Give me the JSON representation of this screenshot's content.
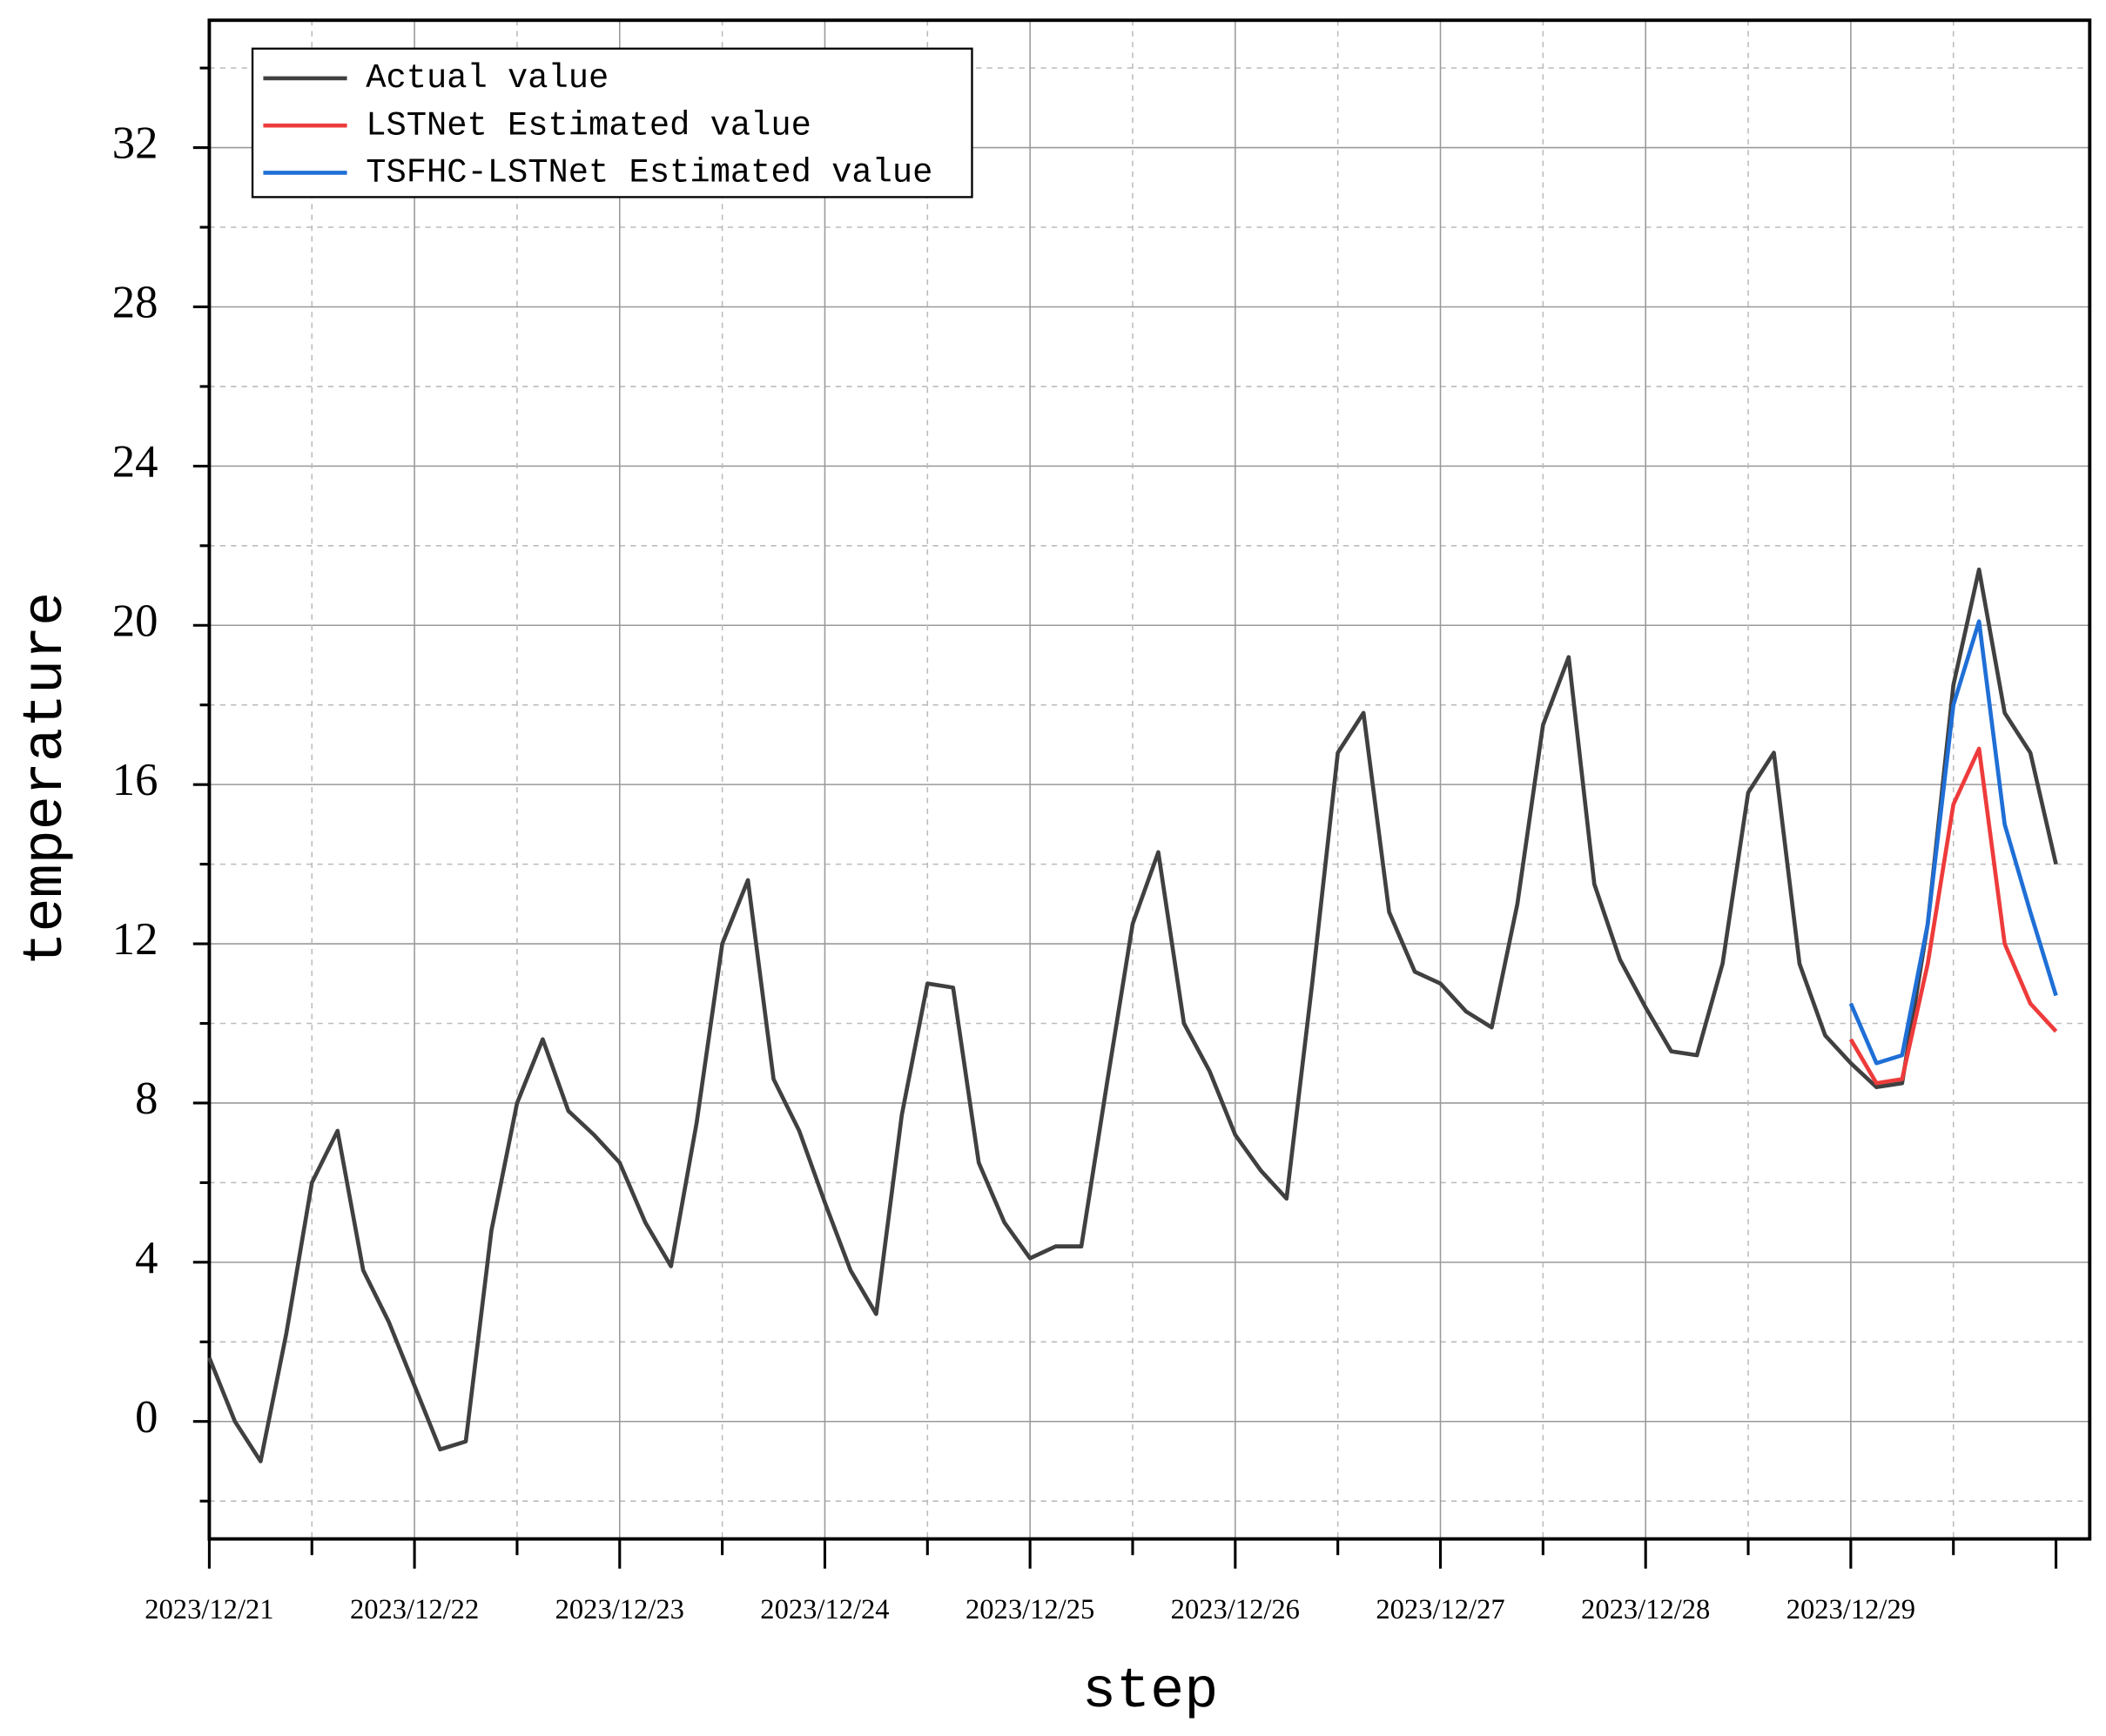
{
  "chart_data": {
    "type": "line",
    "xlabel": "step",
    "ylabel": "temperature",
    "x": [
      0,
      0.125,
      0.25,
      0.375,
      0.5,
      0.625,
      0.75,
      0.875,
      1,
      1.125,
      1.25,
      1.375,
      1.5,
      1.625,
      1.75,
      1.875,
      2,
      2.125,
      2.25,
      2.375,
      2.5,
      2.625,
      2.75,
      2.875,
      3,
      3.125,
      3.25,
      3.375,
      3.5,
      3.625,
      3.75,
      3.875,
      4,
      4.125,
      4.25,
      4.375,
      4.5,
      4.625,
      4.75,
      4.875,
      5,
      5.125,
      5.25,
      5.375,
      5.5,
      5.625,
      5.75,
      5.875,
      6,
      6.125,
      6.25,
      6.375,
      6.5,
      6.625,
      6.75,
      6.875,
      7,
      7.125,
      7.25,
      7.375,
      7.5,
      7.625,
      7.75,
      7.875,
      8,
      8.125,
      8.25,
      8.375,
      8.5,
      8.625,
      8.75,
      8.875,
      9
    ],
    "series": [
      {
        "name": "Actual value",
        "color": "#404040",
        "values": [
          1.6,
          0.0,
          -1.0,
          2.2,
          6.0,
          7.3,
          3.8,
          2.5,
          0.9,
          -0.7,
          -0.5,
          4.8,
          8.0,
          9.6,
          7.8,
          7.2,
          6.5,
          5.0,
          3.9,
          7.5,
          12.0,
          13.6,
          8.6,
          7.3,
          5.5,
          3.8,
          2.7,
          7.7,
          11.0,
          10.9,
          6.5,
          5.0,
          4.1,
          4.4,
          4.4,
          8.5,
          12.5,
          14.3,
          10.0,
          8.8,
          7.2,
          6.3,
          5.6,
          11.0,
          16.8,
          17.8,
          12.8,
          11.3,
          11.0,
          10.3,
          9.9,
          13.0,
          17.5,
          19.2,
          13.5,
          11.6,
          10.4,
          9.3,
          9.2,
          11.5,
          15.8,
          16.8,
          11.5,
          9.7,
          9.0,
          8.4,
          8.5,
          12.5,
          18.5,
          21.4,
          17.8,
          16.8,
          14.0
        ]
      },
      {
        "name": "LSTNet Estimated value",
        "color": "#ee3b3b",
        "values": [
          null,
          null,
          null,
          null,
          null,
          null,
          null,
          null,
          null,
          null,
          null,
          null,
          null,
          null,
          null,
          null,
          null,
          null,
          null,
          null,
          null,
          null,
          null,
          null,
          null,
          null,
          null,
          null,
          null,
          null,
          null,
          null,
          null,
          null,
          null,
          null,
          null,
          null,
          null,
          null,
          null,
          null,
          null,
          null,
          null,
          null,
          null,
          null,
          null,
          null,
          null,
          null,
          null,
          null,
          null,
          null,
          null,
          null,
          null,
          null,
          null,
          null,
          null,
          null,
          9.6,
          8.5,
          8.6,
          11.5,
          15.5,
          16.9,
          12.0,
          10.5,
          9.8
        ]
      },
      {
        "name": "TSFHC-LSTNet Estimated value",
        "color": "#1f6fd6",
        "values": [
          null,
          null,
          null,
          null,
          null,
          null,
          null,
          null,
          null,
          null,
          null,
          null,
          null,
          null,
          null,
          null,
          null,
          null,
          null,
          null,
          null,
          null,
          null,
          null,
          null,
          null,
          null,
          null,
          null,
          null,
          null,
          null,
          null,
          null,
          null,
          null,
          null,
          null,
          null,
          null,
          null,
          null,
          null,
          null,
          null,
          null,
          null,
          null,
          null,
          null,
          null,
          null,
          null,
          null,
          null,
          null,
          null,
          null,
          null,
          null,
          null,
          null,
          null,
          null,
          10.5,
          9.0,
          9.2,
          12.5,
          18.0,
          20.1,
          15.0,
          12.8,
          10.7
        ]
      }
    ],
    "xlim": [
      0,
      9
    ],
    "xticks": [
      {
        "value": 0,
        "label": "2023/12/21"
      },
      {
        "value": 1,
        "label": "2023/12/22"
      },
      {
        "value": 2,
        "label": "2023/12/23"
      },
      {
        "value": 3,
        "label": "2023/12/24"
      },
      {
        "value": 4,
        "label": "2023/12/25"
      },
      {
        "value": 5,
        "label": "2023/12/26"
      },
      {
        "value": 6,
        "label": "2023/12/27"
      },
      {
        "value": 7,
        "label": "2023/12/28"
      },
      {
        "value": 8,
        "label": "2023/12/29"
      }
    ],
    "ylim": [
      -2.95,
      35.2
    ],
    "yticks": [
      0,
      4,
      8,
      12,
      16,
      20,
      24,
      28,
      32
    ],
    "grid": true,
    "legend": "upper left"
  }
}
